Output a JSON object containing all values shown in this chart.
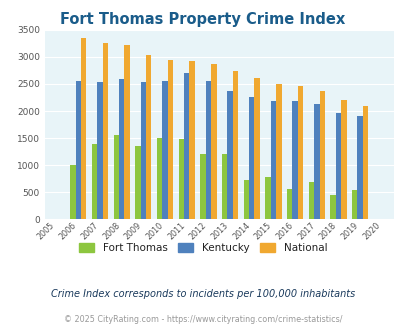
{
  "title": "Fort Thomas Property Crime Index",
  "years": [
    2005,
    2006,
    2007,
    2008,
    2009,
    2010,
    2011,
    2012,
    2013,
    2014,
    2015,
    2016,
    2017,
    2018,
    2019,
    2020
  ],
  "fort_thomas": [
    0,
    1000,
    1400,
    1560,
    1350,
    1500,
    1475,
    1200,
    1200,
    720,
    780,
    560,
    700,
    460,
    540,
    0
  ],
  "kentucky": [
    0,
    2550,
    2540,
    2590,
    2530,
    2550,
    2700,
    2560,
    2370,
    2260,
    2190,
    2180,
    2130,
    1960,
    1900,
    0
  ],
  "national": [
    0,
    3340,
    3260,
    3210,
    3040,
    2950,
    2930,
    2860,
    2730,
    2600,
    2500,
    2470,
    2370,
    2210,
    2100,
    0
  ],
  "fort_thomas_color": "#8dc63f",
  "kentucky_color": "#4f81bd",
  "national_color": "#f0a830",
  "plot_bg": "#e8f4f8",
  "title_color": "#1a5c8a",
  "subtitle": "Crime Index corresponds to incidents per 100,000 inhabitants",
  "footer": "© 2025 CityRating.com - https://www.cityrating.com/crime-statistics/",
  "ylim": [
    0,
    3500
  ],
  "yticks": [
    0,
    500,
    1000,
    1500,
    2000,
    2500,
    3000,
    3500
  ]
}
